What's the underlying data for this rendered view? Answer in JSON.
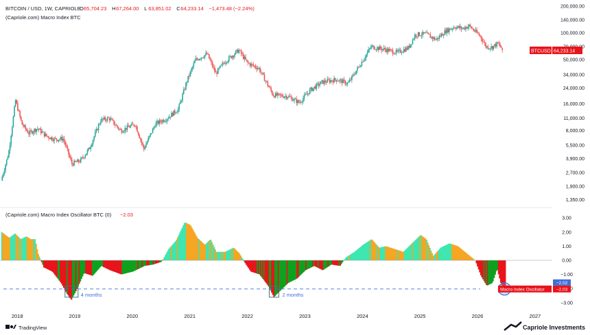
{
  "header": {
    "symbol": "BITCOIN / USD, 1W, CAPRIOLE",
    "ohlc": [
      {
        "label": "O",
        "value": "65,704.23"
      },
      {
        "label": "H",
        "value": "67,264.00"
      },
      {
        "label": "L",
        "value": "63,851.02"
      },
      {
        "label": "C",
        "value": "64,233.14"
      },
      {
        "label": "",
        "value": "−1,473.48 (−2.24%)"
      }
    ],
    "indicator": "(Capriole.com) Macro Index BTC"
  },
  "oscillator_header": {
    "label": "(Capriole.com) Macro Index Oscillator BTC (0)",
    "value": "−2.03"
  },
  "price_tag": {
    "symbol": "BTCUSD",
    "value": "64,233.14"
  },
  "osc_tags": {
    "blue": "−2.02",
    "red_label": "Macro Index Oscillator",
    "red_value": "−2.03"
  },
  "annotations": {
    "box1": "4 months",
    "box2": "2 months"
  },
  "footer": {
    "tradingview": "TradingView",
    "brand": "Capriole Investments"
  },
  "colors": {
    "bull": "#26a69a",
    "bear": "#ef5350",
    "osc_teal": "#3ee6b0",
    "osc_orange": "#f5a623",
    "osc_red": "#e8141b",
    "osc_green": "#0fa01e",
    "accent_blue": "#3d6fd9",
    "tag_red": "#e8141b",
    "box_teal": "#3a7a88"
  },
  "chart_data": [
    {
      "type": "candlestick",
      "title": "BITCOIN / USD, 1W, CAPRIOLE",
      "scale": "log",
      "y_ticks": [
        "200,000.00",
        "140,000.00",
        "100,000.00",
        "70,000.00",
        "50,000.00",
        "34,000.00",
        "24,000.00",
        "16,000.00",
        "11,000.00",
        "8,000.00",
        "5,500.00",
        "3,900.00",
        "2,700.00",
        "1,900.00",
        "1,350.00"
      ],
      "x_ticks": [
        "2018",
        "2019",
        "2020",
        "2021",
        "2022",
        "2023",
        "2024",
        "2025",
        "2026",
        "2027"
      ],
      "x_range": [
        2017.7,
        2027.3
      ],
      "ylim": [
        1200,
        210000
      ],
      "approx_close_path": [
        [
          2017.72,
          2200
        ],
        [
          2017.85,
          4500
        ],
        [
          2017.97,
          17500
        ],
        [
          2018.08,
          9500
        ],
        [
          2018.2,
          7500
        ],
        [
          2018.35,
          8500
        ],
        [
          2018.5,
          7000
        ],
        [
          2018.65,
          6400
        ],
        [
          2018.8,
          6500
        ],
        [
          2018.95,
          3400
        ],
        [
          2019.1,
          3700
        ],
        [
          2019.25,
          5000
        ],
        [
          2019.45,
          10500
        ],
        [
          2019.6,
          11000
        ],
        [
          2019.8,
          8000
        ],
        [
          2020.05,
          9500
        ],
        [
          2020.2,
          5000
        ],
        [
          2020.4,
          9500
        ],
        [
          2020.6,
          11000
        ],
        [
          2020.8,
          14000
        ],
        [
          2020.95,
          29000
        ],
        [
          2021.1,
          50000
        ],
        [
          2021.3,
          58000
        ],
        [
          2021.45,
          35000
        ],
        [
          2021.6,
          47000
        ],
        [
          2021.85,
          64000
        ],
        [
          2022.0,
          46000
        ],
        [
          2022.2,
          40000
        ],
        [
          2022.45,
          20000
        ],
        [
          2022.7,
          19500
        ],
        [
          2022.9,
          16500
        ],
        [
          2023.1,
          23000
        ],
        [
          2023.3,
          28000
        ],
        [
          2023.55,
          30000
        ],
        [
          2023.75,
          27000
        ],
        [
          2023.95,
          43000
        ],
        [
          2024.15,
          70000
        ],
        [
          2024.4,
          65000
        ],
        [
          2024.6,
          60000
        ],
        [
          2024.8,
          68000
        ],
        [
          2024.92,
          96000
        ],
        [
          2025.1,
          97000
        ],
        [
          2025.28,
          84000
        ],
        [
          2025.45,
          105000
        ],
        [
          2025.6,
          117000
        ],
        [
          2025.75,
          112000
        ],
        [
          2025.85,
          120000
        ],
        [
          2025.95,
          105000
        ],
        [
          2026.05,
          92000
        ],
        [
          2026.15,
          70000
        ],
        [
          2026.25,
          69000
        ],
        [
          2026.35,
          76000
        ],
        [
          2026.45,
          64233
        ]
      ]
    },
    {
      "type": "area",
      "title": "(Capriole.com) Macro Index Oscillator BTC (0)",
      "y_ticks": [
        "3.00",
        "2.00",
        "1.00",
        "0.00",
        "−1.00",
        "−2.00",
        "−3.00"
      ],
      "ylim": [
        -3.3,
        3.3
      ],
      "x_range": [
        2017.7,
        2027.3
      ],
      "values": [
        [
          2017.72,
          2.0
        ],
        [
          2017.85,
          1.6
        ],
        [
          2017.95,
          1.9
        ],
        [
          2018.05,
          1.5
        ],
        [
          2018.15,
          1.7
        ],
        [
          2018.22,
          1.5
        ],
        [
          2018.3,
          1.5
        ],
        [
          2018.35,
          0.5
        ],
        [
          2018.45,
          -0.5
        ],
        [
          2018.6,
          -0.8
        ],
        [
          2018.75,
          -1.6
        ],
        [
          2018.85,
          -2.35
        ],
        [
          2018.93,
          -2.8
        ],
        [
          2019.02,
          -2.1
        ],
        [
          2019.15,
          -0.9
        ],
        [
          2019.3,
          -1.1
        ],
        [
          2019.45,
          -0.4
        ],
        [
          2019.6,
          -0.7
        ],
        [
          2019.8,
          -1.0
        ],
        [
          2020.0,
          -0.8
        ],
        [
          2020.2,
          -0.4
        ],
        [
          2020.35,
          -0.3
        ],
        [
          2020.5,
          -0.1
        ],
        [
          2020.62,
          0.8
        ],
        [
          2020.75,
          1.4
        ],
        [
          2020.9,
          2.7
        ],
        [
          2021.0,
          2.5
        ],
        [
          2021.12,
          1.6
        ],
        [
          2021.25,
          1.1
        ],
        [
          2021.35,
          1.5
        ],
        [
          2021.45,
          0.6
        ],
        [
          2021.6,
          0.6
        ],
        [
          2021.75,
          0.9
        ],
        [
          2021.85,
          0.5
        ],
        [
          2021.95,
          -0.2
        ],
        [
          2022.05,
          -0.8
        ],
        [
          2022.2,
          -1.0
        ],
        [
          2022.35,
          -1.8
        ],
        [
          2022.45,
          -2.6
        ],
        [
          2022.55,
          -2.2
        ],
        [
          2022.7,
          -1.6
        ],
        [
          2022.85,
          -1.3
        ],
        [
          2023.0,
          -0.7
        ],
        [
          2023.15,
          -0.4
        ],
        [
          2023.3,
          -0.7
        ],
        [
          2023.45,
          -0.3
        ],
        [
          2023.6,
          -0.4
        ],
        [
          2023.7,
          0.2
        ],
        [
          2023.85,
          0.6
        ],
        [
          2024.0,
          1.1
        ],
        [
          2024.15,
          1.5
        ],
        [
          2024.28,
          0.9
        ],
        [
          2024.4,
          1.0
        ],
        [
          2024.55,
          0.8
        ],
        [
          2024.7,
          0.6
        ],
        [
          2024.85,
          1.2
        ],
        [
          2025.0,
          1.8
        ],
        [
          2025.1,
          1.5
        ],
        [
          2025.22,
          0.3
        ],
        [
          2025.35,
          0.9
        ],
        [
          2025.5,
          1.2
        ],
        [
          2025.65,
          1.0
        ],
        [
          2025.8,
          0.5
        ],
        [
          2025.95,
          0.0
        ],
        [
          2026.05,
          -1.1
        ],
        [
          2026.15,
          -1.8
        ],
        [
          2026.25,
          -1.6
        ],
        [
          2026.33,
          -0.6
        ],
        [
          2026.4,
          -1.7
        ],
        [
          2026.47,
          -2.03
        ]
      ],
      "reference_line": -2.03
    }
  ]
}
